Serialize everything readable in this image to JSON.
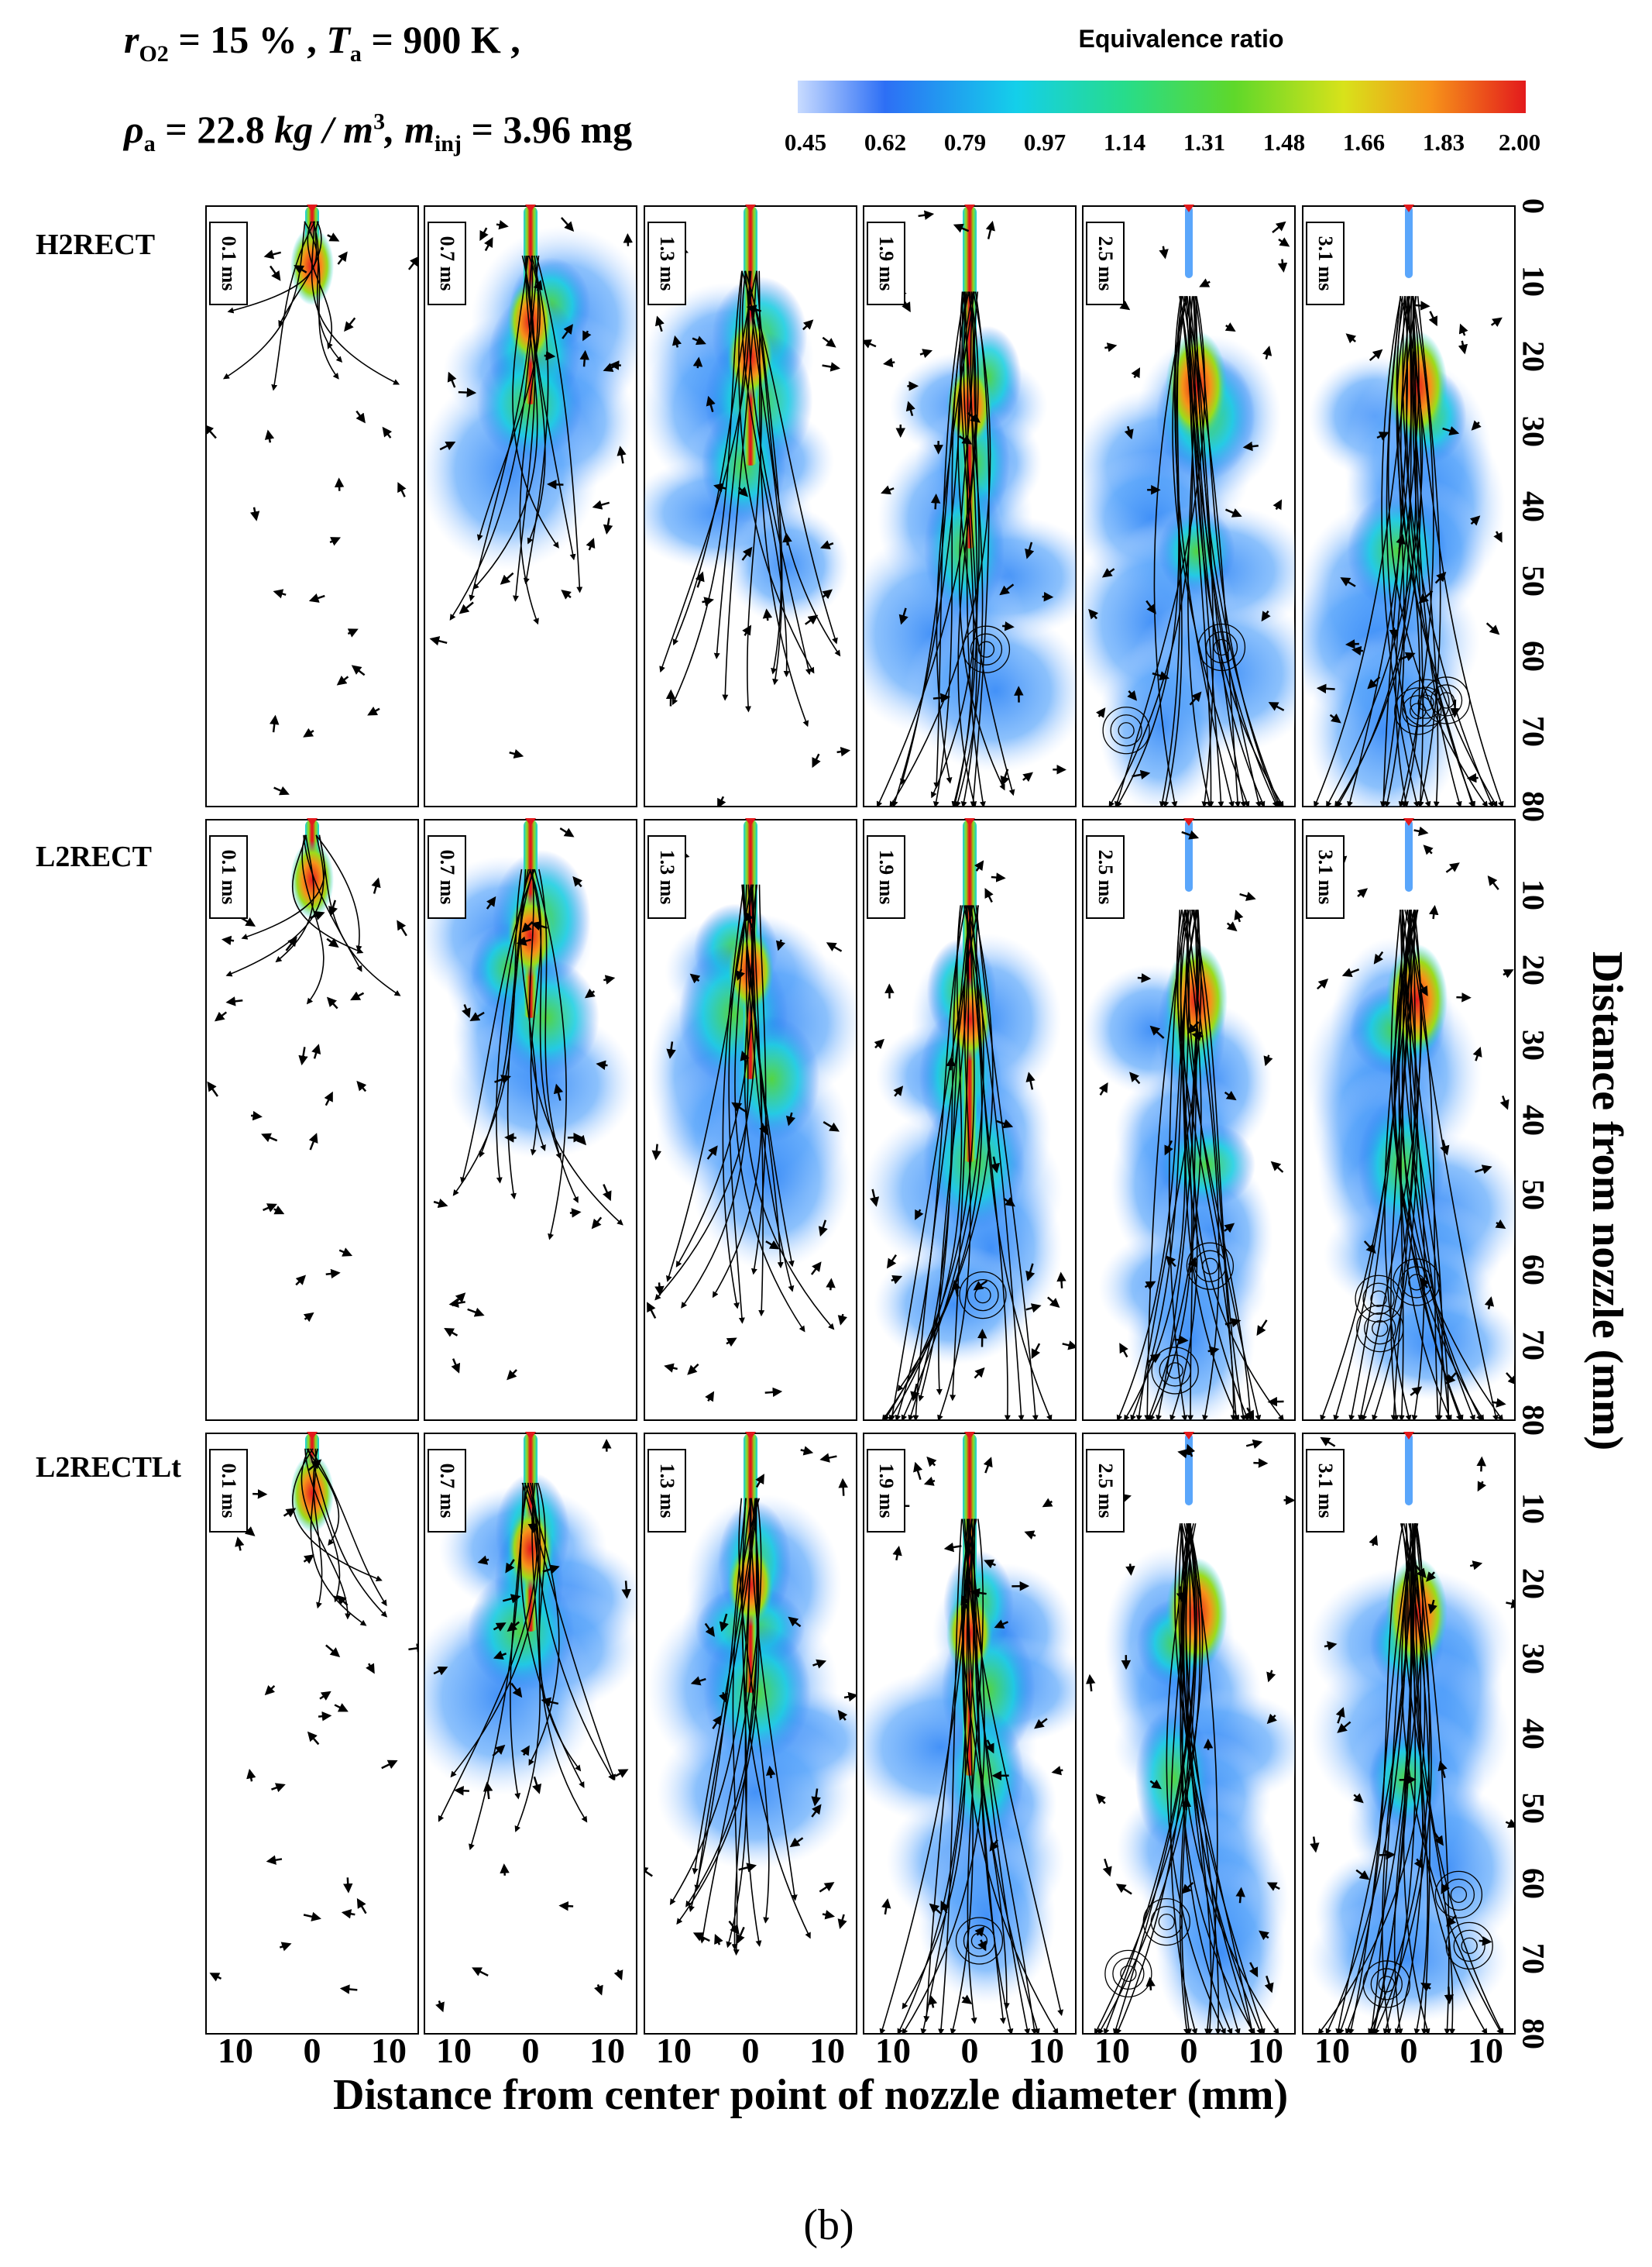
{
  "conditions": {
    "line1": {
      "r_symbol": "r",
      "r_sub": "O2",
      "r_value": "= 15 % ,",
      "t_symbol": "T",
      "t_sub": "a",
      "t_value": "= 900 K ,"
    },
    "line2": {
      "rho_symbol": "ρ",
      "rho_sub": "a",
      "rho_value": "= 22.8",
      "rho_unit": "kg / m",
      "rho_exp": "3",
      "m_symbol": ", m",
      "m_sub": "inj",
      "m_value": "= 3.96 mg"
    }
  },
  "colorbar": {
    "title": "Equivalence ratio",
    "labels": [
      "0.45",
      "0.62",
      "0.79",
      "0.97",
      "1.14",
      "1.31",
      "1.48",
      "1.66",
      "1.83",
      "2.00"
    ],
    "colors": [
      "#2d6ff5",
      "#1f9bf5",
      "#14cfea",
      "#22e0b0",
      "#38d84e",
      "#7edc1a",
      "#d8e21a",
      "#fbb115",
      "#f3591a",
      "#e31a1c"
    ]
  },
  "rows": [
    {
      "label": "H2RECT"
    },
    {
      "label": "L2RECT"
    },
    {
      "label": "L2RECTLt"
    }
  ],
  "times": [
    "0.1 ms",
    "0.7 ms",
    "1.3 ms",
    "1.9 ms",
    "2.5 ms",
    "3.1 ms"
  ],
  "y_axis": {
    "label": "Distance from nozzle (mm)",
    "ticks_row1": [
      "0",
      "10",
      "20",
      "30",
      "40",
      "50",
      "60",
      "70",
      "80"
    ],
    "ticks_row2": [
      "10",
      "20",
      "30",
      "40",
      "50",
      "60",
      "70",
      "80"
    ],
    "ticks_row3": [
      "10",
      "20",
      "30",
      "40",
      "50",
      "60",
      "70",
      "80"
    ]
  },
  "x_axis": {
    "label": "Distance from center point of nozzle diameter (mm)",
    "ticks": [
      "10",
      "0",
      "10"
    ]
  },
  "panel_label": "(b)"
}
